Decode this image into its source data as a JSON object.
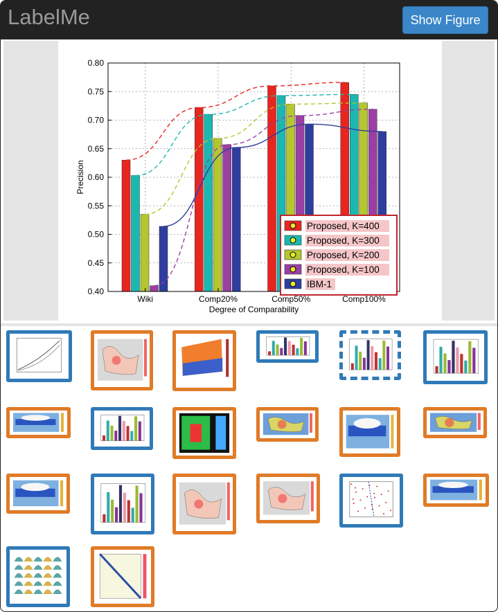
{
  "app": {
    "title": "LabelMe",
    "show_figure_label": "Show Figure"
  },
  "chart_data": {
    "type": "bar",
    "categories": [
      "Wiki",
      "Comp20%",
      "Comp50%",
      "Comp100%"
    ],
    "series": [
      {
        "name": "Proposed, K=400",
        "color": "#e8251f",
        "values": [
          0.63,
          0.722,
          0.76,
          0.766
        ]
      },
      {
        "name": "Proposed, K=300",
        "color": "#1bb8b0",
        "values": [
          0.603,
          0.71,
          0.743,
          0.745
        ]
      },
      {
        "name": "Proposed, K=200",
        "color": "#b5c630",
        "values": [
          0.535,
          0.668,
          0.728,
          0.73
        ]
      },
      {
        "name": "Proposed, K=100",
        "color": "#9b3fa5",
        "values": [
          0.41,
          0.657,
          0.708,
          0.719
        ]
      },
      {
        "name": "IBM-1",
        "color": "#2f3e9e",
        "values": [
          0.514,
          0.652,
          0.693,
          0.68
        ]
      }
    ],
    "xlabel": "Degree of Comparability",
    "ylabel": "Precision",
    "ylim": [
      0.4,
      0.8
    ],
    "yticks": [
      "0.40",
      "0.45",
      "0.50",
      "0.55",
      "0.60",
      "0.65",
      "0.70",
      "0.75",
      "0.80"
    ],
    "grid": true,
    "legend_position": "bottom-right",
    "dashed_trend_lines": true
  },
  "thumbnails": [
    {
      "kind": "line-plot",
      "status": "blue"
    },
    {
      "kind": "map",
      "status": "orange"
    },
    {
      "kind": "surface-plot",
      "status": "orange"
    },
    {
      "kind": "bar-chart",
      "status": "blue"
    },
    {
      "kind": "bar-chart-selected",
      "status": "blue-dashed"
    },
    {
      "kind": "bar-chart",
      "status": "blue"
    },
    {
      "kind": "heatmap",
      "status": "orange"
    },
    {
      "kind": "bar-chart",
      "status": "blue"
    },
    {
      "kind": "heatmap-grid",
      "status": "orange"
    },
    {
      "kind": "world-map",
      "status": "orange"
    },
    {
      "kind": "heatmap",
      "status": "orange"
    },
    {
      "kind": "world-map",
      "status": "orange"
    },
    {
      "kind": "heatmap",
      "status": "orange"
    },
    {
      "kind": "bar-chart",
      "status": "blue"
    },
    {
      "kind": "map",
      "status": "orange"
    },
    {
      "kind": "map",
      "status": "orange"
    },
    {
      "kind": "scatter-plot",
      "status": "blue"
    },
    {
      "kind": "heatmap",
      "status": "orange"
    },
    {
      "kind": "distribution-grid",
      "status": "blue"
    },
    {
      "kind": "matrix-plot",
      "status": "orange"
    }
  ]
}
